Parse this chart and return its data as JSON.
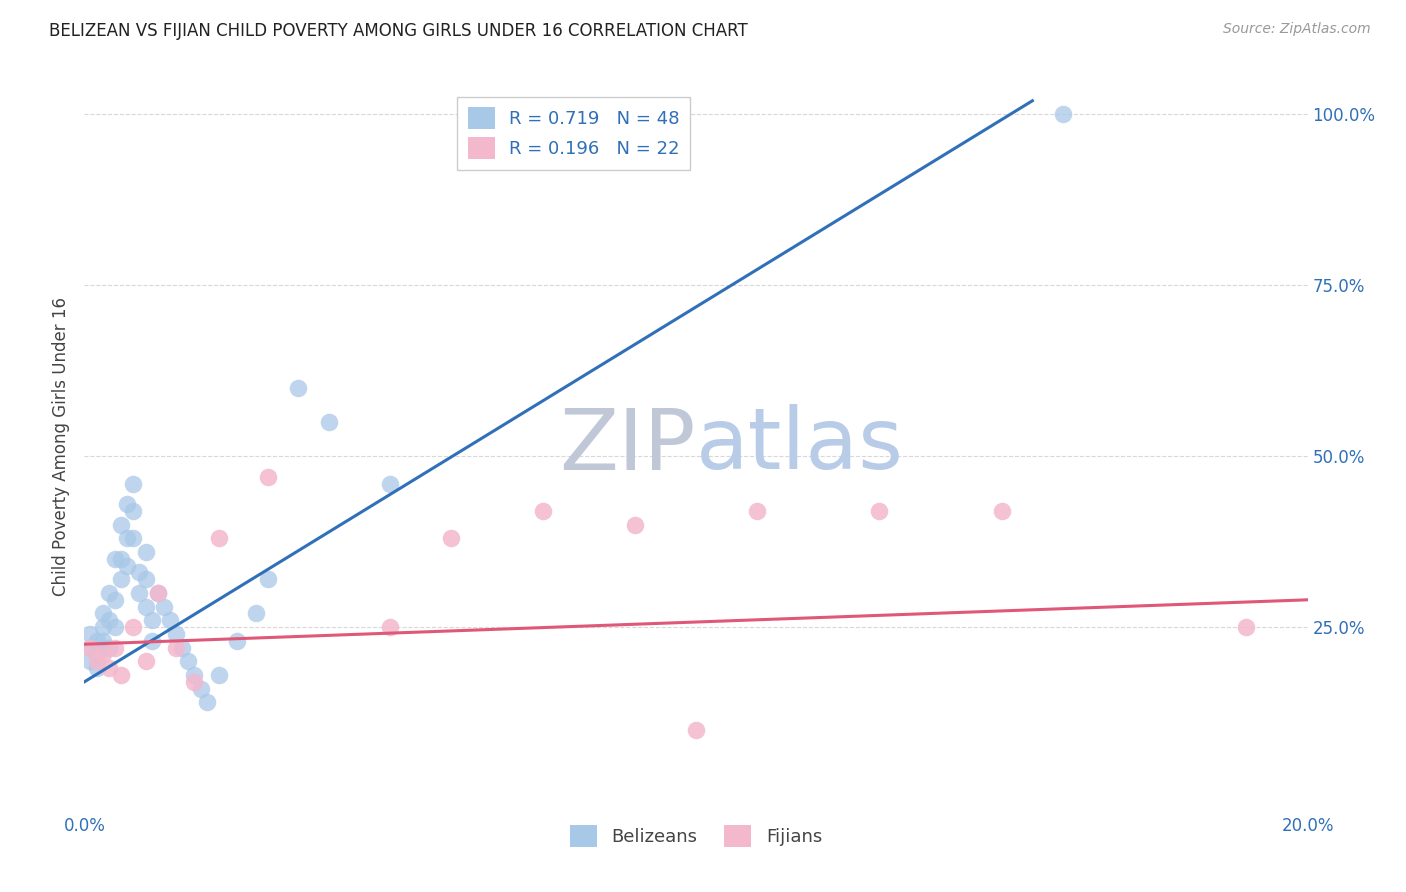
{
  "title": "BELIZEAN VS FIJIAN CHILD POVERTY AMONG GIRLS UNDER 16 CORRELATION CHART",
  "source": "Source: ZipAtlas.com",
  "ylabel": "Child Poverty Among Girls Under 16",
  "xlim": [
    0.0,
    0.2
  ],
  "ylim": [
    -0.02,
    1.05
  ],
  "blue_R": 0.719,
  "blue_N": 48,
  "pink_R": 0.196,
  "pink_N": 22,
  "blue_color": "#a8c8e8",
  "pink_color": "#f4b8cc",
  "blue_line_color": "#3070b8",
  "pink_line_color": "#e05878",
  "legend_text_color": "#3070b8",
  "watermark_ZIP_color": "#c0c8d8",
  "watermark_atlas_color": "#b8cce8",
  "background_color": "#ffffff",
  "grid_color": "#d8d8d8",
  "title_color": "#222222",
  "blue_scatter_x": [
    0.001,
    0.001,
    0.001,
    0.002,
    0.002,
    0.002,
    0.003,
    0.003,
    0.003,
    0.004,
    0.004,
    0.004,
    0.005,
    0.005,
    0.005,
    0.006,
    0.006,
    0.006,
    0.007,
    0.007,
    0.007,
    0.008,
    0.008,
    0.008,
    0.009,
    0.009,
    0.01,
    0.01,
    0.01,
    0.011,
    0.011,
    0.012,
    0.013,
    0.014,
    0.015,
    0.016,
    0.017,
    0.018,
    0.019,
    0.02,
    0.022,
    0.025,
    0.028,
    0.03,
    0.035,
    0.04,
    0.05,
    0.16
  ],
  "blue_scatter_y": [
    0.22,
    0.24,
    0.2,
    0.23,
    0.21,
    0.19,
    0.27,
    0.25,
    0.23,
    0.3,
    0.26,
    0.22,
    0.35,
    0.29,
    0.25,
    0.4,
    0.35,
    0.32,
    0.43,
    0.38,
    0.34,
    0.46,
    0.42,
    0.38,
    0.33,
    0.3,
    0.28,
    0.32,
    0.36,
    0.26,
    0.23,
    0.3,
    0.28,
    0.26,
    0.24,
    0.22,
    0.2,
    0.18,
    0.16,
    0.14,
    0.18,
    0.23,
    0.27,
    0.32,
    0.6,
    0.55,
    0.46,
    1.0
  ],
  "pink_scatter_x": [
    0.001,
    0.002,
    0.003,
    0.004,
    0.005,
    0.006,
    0.008,
    0.01,
    0.012,
    0.015,
    0.018,
    0.022,
    0.03,
    0.05,
    0.06,
    0.075,
    0.09,
    0.1,
    0.11,
    0.13,
    0.15,
    0.19
  ],
  "pink_scatter_y": [
    0.22,
    0.2,
    0.21,
    0.19,
    0.22,
    0.18,
    0.25,
    0.2,
    0.3,
    0.22,
    0.17,
    0.38,
    0.47,
    0.25,
    0.38,
    0.42,
    0.4,
    0.1,
    0.42,
    0.42,
    0.42,
    0.25
  ],
  "blue_line_x0": 0.0,
  "blue_line_y0": 0.17,
  "blue_line_x1": 0.155,
  "blue_line_y1": 1.02,
  "pink_line_x0": 0.0,
  "pink_line_y0": 0.225,
  "pink_line_x1": 0.2,
  "pink_line_y1": 0.29
}
